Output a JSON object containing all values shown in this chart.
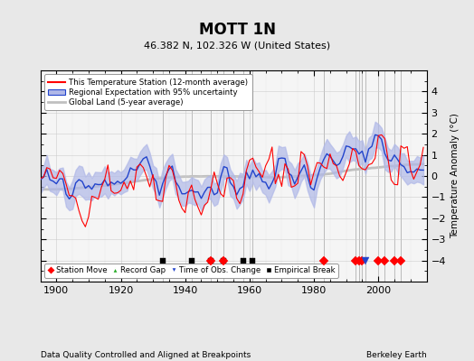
{
  "title": "MOTT 1N",
  "subtitle": "46.382 N, 102.326 W (United States)",
  "xlabel_bottom": "Data Quality Controlled and Aligned at Breakpoints",
  "xlabel_right": "Berkeley Earth",
  "ylabel": "Temperature Anomaly (°C)",
  "xlim": [
    1895,
    2015
  ],
  "ylim": [
    -5,
    5
  ],
  "yticks": [
    -4,
    -3,
    -2,
    -1,
    0,
    1,
    2,
    3,
    4
  ],
  "xticks": [
    1900,
    1920,
    1940,
    1960,
    1980,
    2000
  ],
  "bg_color": "#e8e8e8",
  "plot_bg_color": "#f5f5f5",
  "station_move_years": [
    1948,
    1952,
    1983,
    1993,
    1994,
    1995,
    2000,
    2002,
    2005,
    2007
  ],
  "record_gap_years": [],
  "time_obs_change_years": [
    1996
  ],
  "empirical_break_years": [
    1933,
    1942,
    1948,
    1952,
    1958,
    1961
  ],
  "vertical_line_years": [
    1933,
    1942,
    1948,
    1952,
    1958,
    1961,
    1983,
    1993,
    1994,
    1995,
    1996,
    2000,
    2002,
    2005,
    2007
  ],
  "marker_y": -4.0,
  "seed": 42
}
